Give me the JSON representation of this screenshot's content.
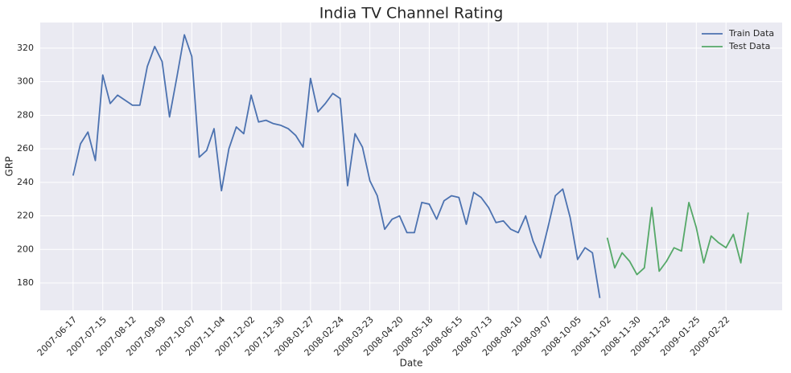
{
  "chart_data": {
    "type": "line",
    "title": "India TV Channel Rating",
    "xlabel": "Date",
    "ylabel": "GRP",
    "xlim": [
      "2007-05-17",
      "2009-04-16"
    ],
    "ylim": [
      163.7,
      335.3
    ],
    "yticks": [
      180,
      200,
      220,
      240,
      260,
      280,
      300,
      320
    ],
    "xticks": [
      "2007-06-17",
      "2007-07-15",
      "2007-08-12",
      "2007-09-09",
      "2007-10-07",
      "2007-11-04",
      "2007-12-02",
      "2007-12-30",
      "2008-01-27",
      "2008-02-24",
      "2008-03-23",
      "2008-04-20",
      "2008-05-18",
      "2008-06-15",
      "2008-07-13",
      "2008-08-10",
      "2008-09-07",
      "2008-10-05",
      "2008-11-02",
      "2008-11-30",
      "2008-12-28",
      "2009-01-25",
      "2009-02-22"
    ],
    "grid": true,
    "legend": "upper right",
    "series": [
      {
        "name": "Train Data",
        "color": "#4c72b0",
        "x": [
          "2007-06-17",
          "2007-06-24",
          "2007-07-01",
          "2007-07-08",
          "2007-07-15",
          "2007-07-22",
          "2007-07-29",
          "2007-08-05",
          "2007-08-12",
          "2007-08-19",
          "2007-08-26",
          "2007-09-02",
          "2007-09-09",
          "2007-09-16",
          "2007-09-23",
          "2007-09-30",
          "2007-10-07",
          "2007-10-14",
          "2007-10-21",
          "2007-10-28",
          "2007-11-04",
          "2007-11-11",
          "2007-11-18",
          "2007-11-25",
          "2007-12-02",
          "2007-12-09",
          "2007-12-16",
          "2007-12-23",
          "2007-12-30",
          "2008-01-06",
          "2008-01-13",
          "2008-01-20",
          "2008-01-27",
          "2008-02-03",
          "2008-02-10",
          "2008-02-17",
          "2008-02-24",
          "2008-03-02",
          "2008-03-09",
          "2008-03-16",
          "2008-03-23",
          "2008-03-30",
          "2008-04-06",
          "2008-04-13",
          "2008-04-20",
          "2008-04-27",
          "2008-05-04",
          "2008-05-11",
          "2008-05-18",
          "2008-05-25",
          "2008-06-01",
          "2008-06-08",
          "2008-06-15",
          "2008-06-22",
          "2008-06-29",
          "2008-07-06",
          "2008-07-13",
          "2008-07-20",
          "2008-07-27",
          "2008-08-03",
          "2008-08-10",
          "2008-08-17",
          "2008-08-24",
          "2008-08-31",
          "2008-09-07",
          "2008-09-14",
          "2008-09-21",
          "2008-09-28",
          "2008-10-05",
          "2008-10-12",
          "2008-10-19",
          "2008-10-26"
        ],
        "values": [
          244,
          263,
          270,
          253,
          304,
          287,
          292,
          289,
          286,
          286,
          309,
          321,
          312,
          279,
          303,
          328,
          315,
          255,
          259,
          272,
          235,
          260,
          273,
          269,
          292,
          276,
          277,
          275,
          274,
          272,
          268,
          261,
          302,
          282,
          287,
          293,
          290,
          238,
          269,
          261,
          241,
          232,
          212,
          218,
          220,
          210,
          210,
          228,
          227,
          218,
          229,
          232,
          231,
          215,
          234,
          231,
          225,
          216,
          217,
          212,
          210,
          220,
          205,
          195,
          213,
          232,
          236,
          219,
          194,
          201,
          198,
          171
        ]
      },
      {
        "name": "Test Data",
        "color": "#55a868",
        "x": [
          "2008-11-02",
          "2008-11-09",
          "2008-11-16",
          "2008-11-23",
          "2008-11-30",
          "2008-12-07",
          "2008-12-14",
          "2008-12-21",
          "2008-12-28",
          "2009-01-04",
          "2009-01-11",
          "2009-01-18",
          "2009-01-25",
          "2009-02-01",
          "2009-02-08",
          "2009-02-15",
          "2009-02-22",
          "2009-03-01",
          "2009-03-08",
          "2009-03-15"
        ],
        "values": [
          207,
          189,
          198,
          193,
          185,
          189,
          225,
          187,
          193,
          201,
          199,
          228,
          213,
          192,
          208,
          204,
          201,
          209,
          192,
          222
        ]
      }
    ]
  }
}
